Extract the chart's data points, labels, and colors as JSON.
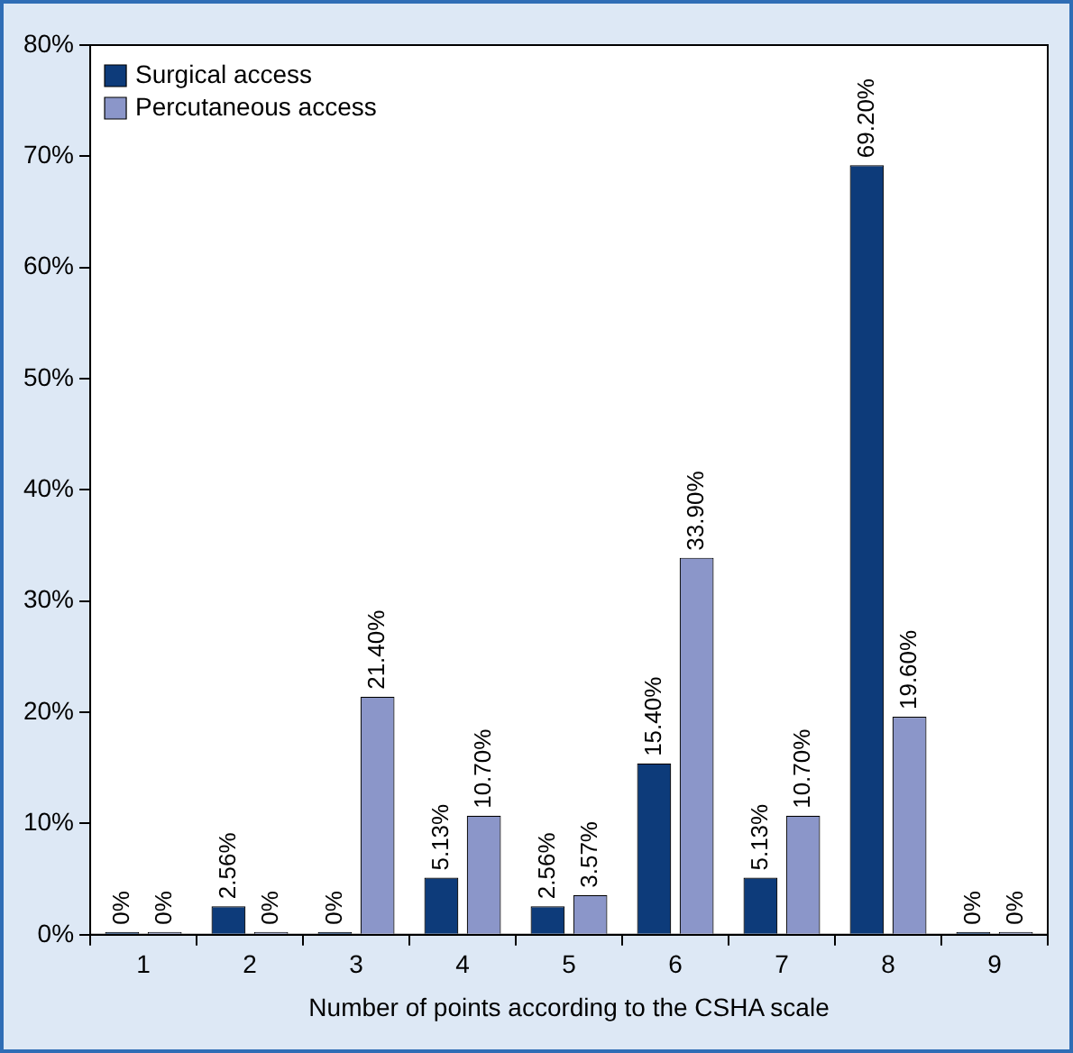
{
  "chart_data": {
    "type": "bar",
    "xlabel": "Number of points according to the CSHA scale",
    "categories": [
      "1",
      "2",
      "3",
      "4",
      "5",
      "6",
      "7",
      "8",
      "9"
    ],
    "series": [
      {
        "name": "Surgical access",
        "color": "#0d3b7a",
        "values": [
          0,
          2.56,
          0,
          5.13,
          2.56,
          15.4,
          5.13,
          69.2,
          0
        ],
        "value_labels": [
          "0%",
          "2.56%",
          "0%",
          "5.13%",
          "2.56%",
          "15.40%",
          "5.13%",
          "69.20%",
          "0%"
        ]
      },
      {
        "name": "Percutaneous access",
        "color": "#8b96c9",
        "values": [
          0,
          0,
          21.4,
          10.7,
          3.57,
          33.9,
          10.7,
          19.6,
          0
        ],
        "value_labels": [
          "0%",
          "0%",
          "21.40%",
          "10.70%",
          "3.57%",
          "33.90%",
          "10.70%",
          "19.60%",
          "0%"
        ]
      }
    ],
    "ylim": [
      0,
      80
    ],
    "yticks": [
      {
        "value": 0,
        "label": "0%"
      },
      {
        "value": 10,
        "label": "10%"
      },
      {
        "value": 20,
        "label": "20%"
      },
      {
        "value": 30,
        "label": "30%"
      },
      {
        "value": 40,
        "label": "40%"
      },
      {
        "value": 50,
        "label": "50%"
      },
      {
        "value": 60,
        "label": "60%"
      },
      {
        "value": 70,
        "label": "70%"
      },
      {
        "value": 80,
        "label": "80%"
      }
    ],
    "grid": false,
    "legend": "top left"
  }
}
